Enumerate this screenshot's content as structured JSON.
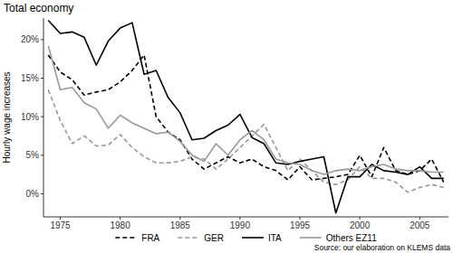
{
  "chart_data": {
    "type": "line",
    "title": "Total economy",
    "y_label": "Hourly wage increases",
    "caption": "Source: our elaboration on KLEMS data",
    "x": [
      1974,
      1975,
      1976,
      1977,
      1978,
      1979,
      1980,
      1981,
      1982,
      1983,
      1984,
      1985,
      1986,
      1987,
      1988,
      1989,
      1990,
      1991,
      1992,
      1993,
      1994,
      1995,
      1996,
      1997,
      1998,
      1999,
      2000,
      2001,
      2002,
      2003,
      2004,
      2005,
      2006,
      2007
    ],
    "series": [
      {
        "name": "FRA",
        "color": "#000000",
        "line_style": "dashed",
        "values": [
          18.0,
          15.8,
          14.8,
          12.8,
          13.2,
          13.5,
          14.5,
          16.0,
          18.0,
          10.0,
          8.0,
          7.0,
          4.5,
          3.2,
          4.0,
          4.8,
          4.0,
          4.5,
          3.5,
          3.0,
          1.8,
          3.5,
          1.8,
          2.0,
          2.2,
          2.5,
          5.0,
          2.2,
          6.0,
          3.0,
          2.5,
          3.0,
          4.5,
          1.5
        ]
      },
      {
        "name": "GER",
        "color": "#999999",
        "line_style": "dashed",
        "values": [
          13.5,
          9.5,
          6.5,
          7.5,
          6.2,
          6.3,
          7.7,
          6.0,
          4.8,
          4.0,
          4.0,
          4.2,
          4.8,
          4.5,
          3.2,
          4.5,
          6.0,
          7.5,
          9.0,
          6.0,
          3.0,
          4.5,
          3.0,
          1.5,
          1.2,
          1.8,
          3.5,
          2.0,
          2.0,
          1.5,
          0.2,
          0.8,
          1.2,
          0.8
        ]
      },
      {
        "name": "ITA",
        "color": "#000000",
        "line_style": "solid",
        "values": [
          22.5,
          20.8,
          21.0,
          20.3,
          16.7,
          19.8,
          21.5,
          22.2,
          15.5,
          16.0,
          12.5,
          10.5,
          7.0,
          7.2,
          8.2,
          8.9,
          10.3,
          7.3,
          6.5,
          4.0,
          3.8,
          4.2,
          4.5,
          4.8,
          -2.5,
          2.2,
          2.2,
          3.8,
          3.0,
          2.8,
          2.5,
          3.5,
          2.0,
          2.0
        ]
      },
      {
        "name": "Others EZ11",
        "color": "#999999",
        "line_style": "solid",
        "values": [
          19.2,
          13.5,
          13.8,
          11.8,
          11.0,
          8.5,
          10.2,
          9.2,
          8.5,
          7.8,
          8.0,
          6.8,
          5.0,
          4.2,
          6.5,
          5.0,
          7.0,
          8.2,
          7.0,
          4.5,
          4.0,
          3.8,
          3.0,
          2.5,
          3.0,
          3.2,
          3.0,
          3.5,
          3.8,
          3.2,
          3.0,
          3.0,
          2.8,
          2.8
        ]
      }
    ],
    "xlim": [
      1973.6,
      2007.4
    ],
    "xticks": [
      1975,
      1980,
      1985,
      1990,
      1995,
      2000,
      2005
    ],
    "ylim": [
      -3,
      22.8
    ],
    "yticks": [
      {
        "value": 0,
        "label": "0%"
      },
      {
        "value": 5,
        "label": "5%"
      },
      {
        "value": 10,
        "label": "10%"
      },
      {
        "value": 15,
        "label": "15%"
      },
      {
        "value": 20,
        "label": "20%"
      }
    ],
    "grid": false,
    "legend": "bottom"
  }
}
